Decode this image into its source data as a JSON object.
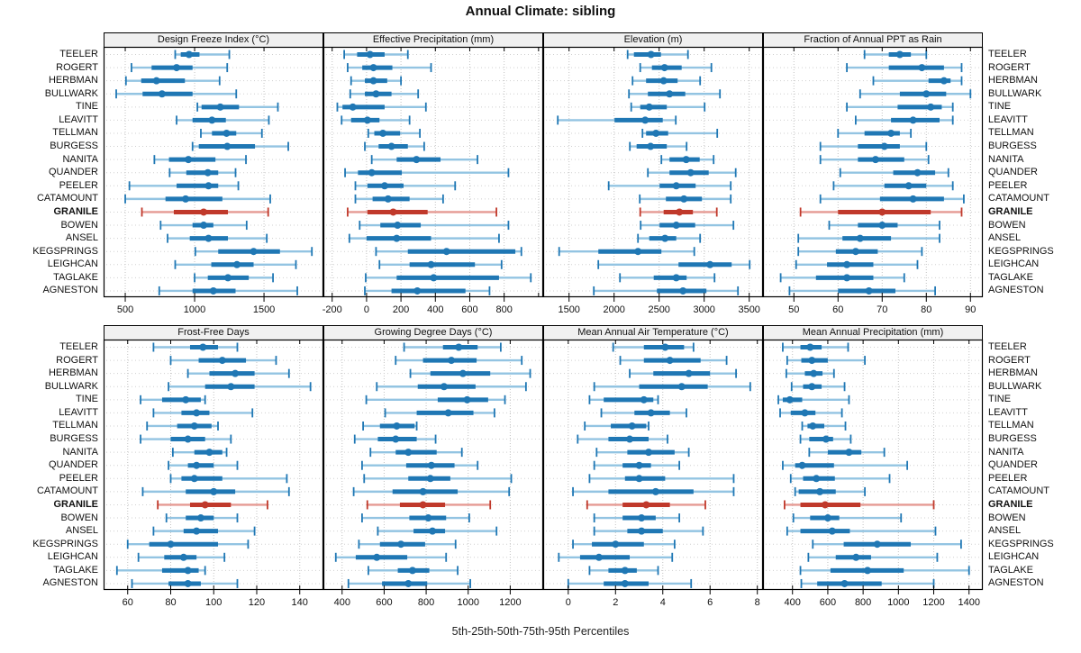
{
  "header": {
    "title": "Annual Climate: sibling"
  },
  "caption": {
    "text": "5th-25th-50th-75th-95th Percentiles"
  },
  "stations": [
    "TEELER",
    "ROGERT",
    "HERBMAN",
    "BULLWARK",
    "TINE",
    "LEAVITT",
    "TELLMAN",
    "BURGESS",
    "NANITA",
    "QUANDER",
    "PEELER",
    "CATAMOUNT",
    "GRANILE",
    "BOWEN",
    "ANSEL",
    "KEGSPRINGS",
    "LEIGHCAN",
    "TAGLAKE",
    "AGNESTON"
  ],
  "highlight_station": "GRANILE",
  "percentile_labels": [
    "5th",
    "25th",
    "50th",
    "75th",
    "95th"
  ],
  "style": {
    "blue": "#1f77b4",
    "blue_light": "#93c4e2",
    "red": "#c0392b",
    "red_light": "#e59a93",
    "grid": "#c3c3c3",
    "row_guide": "#d0d0d0",
    "header_bg": "#f0f0f0",
    "border": "#000000"
  },
  "chart_data": [
    {
      "type": "scatter",
      "subtype": "horizontal 5-25-50-75-95 percentile intervals",
      "title": "Design Freeze Index (°C)",
      "row": 0,
      "ticks": [
        500,
        1000,
        1500
      ],
      "xlim": [
        344,
        1928
      ],
      "values": [
        [
          860,
          900,
          960,
          1035,
          1250
        ],
        [
          545,
          690,
          870,
          985,
          1235
        ],
        [
          505,
          615,
          725,
          930,
          1180
        ],
        [
          435,
          625,
          765,
          985,
          1300
        ],
        [
          1020,
          1050,
          1185,
          1320,
          1600
        ],
        [
          870,
          985,
          1125,
          1225,
          1535
        ],
        [
          1045,
          1125,
          1230,
          1300,
          1485
        ],
        [
          985,
          1030,
          1235,
          1435,
          1675
        ],
        [
          710,
          815,
          955,
          1150,
          1370
        ],
        [
          820,
          940,
          1095,
          1170,
          1295
        ],
        [
          530,
          870,
          1100,
          1170,
          1315
        ],
        [
          500,
          790,
          935,
          1200,
          1545
        ],
        [
          620,
          850,
          1065,
          1240,
          1530
        ],
        [
          755,
          985,
          1065,
          1135,
          1375
        ],
        [
          805,
          965,
          1100,
          1240,
          1520
        ],
        [
          1005,
          1170,
          1425,
          1615,
          1845
        ],
        [
          860,
          1120,
          1305,
          1425,
          1730
        ],
        [
          1000,
          1095,
          1240,
          1390,
          1565
        ],
        [
          745,
          985,
          1135,
          1295,
          1740
        ]
      ]
    },
    {
      "type": "scatter",
      "subtype": "horizontal 5-25-50-75-95 percentile intervals",
      "title": "Effective Precipitation (mm)",
      "row": 0,
      "ticks": [
        -200,
        0,
        200,
        400,
        600,
        800
      ],
      "extra_gridlines": [
        1000
      ],
      "xlim": [
        -251,
        1027
      ],
      "values": [
        [
          -130,
          -55,
          20,
          105,
          240
        ],
        [
          -110,
          -25,
          40,
          150,
          375
        ],
        [
          -90,
          -10,
          40,
          120,
          200
        ],
        [
          -95,
          -10,
          55,
          145,
          300
        ],
        [
          -170,
          -140,
          -80,
          105,
          345
        ],
        [
          -145,
          -90,
          5,
          75,
          250
        ],
        [
          10,
          45,
          95,
          195,
          310
        ],
        [
          -10,
          70,
          145,
          240,
          335
        ],
        [
          30,
          175,
          290,
          430,
          645
        ],
        [
          -125,
          -50,
          30,
          205,
          825
        ],
        [
          -65,
          5,
          105,
          215,
          515
        ],
        [
          -65,
          35,
          125,
          250,
          445
        ],
        [
          -110,
          5,
          155,
          355,
          755
        ],
        [
          -40,
          80,
          180,
          315,
          825
        ],
        [
          -100,
          0,
          175,
          375,
          770
        ],
        [
          55,
          240,
          465,
          865,
          900
        ],
        [
          75,
          250,
          375,
          630,
          785
        ],
        [
          -5,
          175,
          390,
          770,
          955
        ],
        [
          -10,
          145,
          295,
          575,
          715
        ]
      ]
    },
    {
      "type": "scatter",
      "subtype": "horizontal 5-25-50-75-95 percentile intervals",
      "title": "Elevation (m)",
      "row": 0,
      "ticks": [
        1500,
        2000,
        2500,
        3000,
        3500
      ],
      "xlim": [
        1213,
        3653
      ],
      "values": [
        [
          2150,
          2220,
          2410,
          2520,
          2820
        ],
        [
          2290,
          2420,
          2560,
          2750,
          3080
        ],
        [
          2205,
          2355,
          2550,
          2705,
          2955
        ],
        [
          2165,
          2375,
          2615,
          2790,
          3175
        ],
        [
          2190,
          2290,
          2390,
          2585,
          3005
        ],
        [
          1375,
          2005,
          2345,
          2540,
          2685
        ],
        [
          2315,
          2355,
          2465,
          2600,
          3145
        ],
        [
          2175,
          2250,
          2405,
          2585,
          2805
        ],
        [
          2525,
          2615,
          2800,
          2950,
          3105
        ],
        [
          2375,
          2615,
          2850,
          3050,
          3350
        ],
        [
          1940,
          2505,
          2690,
          2905,
          3295
        ],
        [
          2285,
          2575,
          2775,
          2975,
          3295
        ],
        [
          2290,
          2550,
          2725,
          2875,
          3140
        ],
        [
          2295,
          2505,
          2690,
          2900,
          3325
        ],
        [
          2265,
          2390,
          2565,
          2690,
          2955
        ],
        [
          1390,
          1825,
          2265,
          2525,
          2890
        ],
        [
          1825,
          2715,
          3065,
          3305,
          3505
        ],
        [
          2065,
          2440,
          2690,
          2805,
          3115
        ],
        [
          1775,
          2475,
          2765,
          3025,
          3375
        ]
      ]
    },
    {
      "type": "scatter",
      "subtype": "horizontal 5-25-50-75-95 percentile intervals",
      "title": "Fraction of Annual PPT as Rain",
      "row": 0,
      "ticks": [
        50,
        60,
        70,
        80,
        90
      ],
      "xlim": [
        43,
        92.8
      ],
      "values": [
        [
          66,
          71.5,
          74,
          76.5,
          80
        ],
        [
          62,
          71.5,
          79,
          84,
          88
        ],
        [
          68,
          80.5,
          84,
          85.5,
          88
        ],
        [
          65,
          74,
          80,
          84.5,
          90
        ],
        [
          62,
          73.5,
          81,
          83.5,
          86
        ],
        [
          64,
          72,
          77,
          83,
          86
        ],
        [
          60,
          66,
          72,
          74,
          76.5
        ],
        [
          56,
          64.5,
          70.5,
          74,
          80
        ],
        [
          56,
          64.5,
          68.5,
          75,
          80.5
        ],
        [
          60.5,
          72.5,
          78,
          82,
          85
        ],
        [
          59,
          70.5,
          76,
          80,
          86
        ],
        [
          56,
          69.5,
          77,
          84,
          88.5
        ],
        [
          51.5,
          60,
          70,
          81,
          88
        ],
        [
          58,
          64.5,
          70,
          73.5,
          83
        ],
        [
          51,
          61,
          65,
          72,
          83
        ],
        [
          51,
          59.5,
          64,
          69,
          79
        ],
        [
          50.5,
          57.5,
          62,
          68,
          78
        ],
        [
          47,
          55,
          62,
          68,
          75
        ],
        [
          49,
          60,
          67,
          73,
          82
        ]
      ]
    },
    {
      "type": "scatter",
      "subtype": "horizontal 5-25-50-75-95 percentile intervals",
      "title": "Frost-Free Days",
      "row": 1,
      "ticks": [
        60,
        80,
        100,
        120,
        140
      ],
      "xlim": [
        48.8,
        151
      ],
      "values": [
        [
          72,
          89,
          95,
          102,
          111
        ],
        [
          80,
          93,
          104,
          115,
          129
        ],
        [
          88,
          98,
          110,
          119,
          135
        ],
        [
          79,
          96,
          108,
          119,
          145
        ],
        [
          66,
          76,
          87,
          94,
          96
        ],
        [
          72,
          85,
          92,
          98,
          118
        ],
        [
          69,
          83,
          91,
          99,
          102
        ],
        [
          66,
          80,
          88,
          96,
          108
        ],
        [
          81,
          91,
          98,
          104,
          106
        ],
        [
          79,
          88,
          92,
          100,
          111
        ],
        [
          80,
          85,
          91,
          104,
          134
        ],
        [
          67,
          87,
          100,
          110,
          135
        ],
        [
          74,
          89,
          96,
          108,
          125
        ],
        [
          78,
          87,
          94,
          100,
          111
        ],
        [
          72,
          86,
          92,
          102,
          119
        ],
        [
          60,
          70,
          80,
          102,
          116
        ],
        [
          65,
          77,
          86,
          92,
          105
        ],
        [
          55,
          76,
          88,
          93,
          96
        ],
        [
          62,
          79,
          88,
          94,
          111
        ]
      ]
    },
    {
      "type": "scatter",
      "subtype": "horizontal 5-25-50-75-95 percentile intervals",
      "title": "Growing Degree Days (°C)",
      "row": 1,
      "ticks": [
        400,
        600,
        800,
        1000,
        1200
      ],
      "xlim": [
        311,
        1357
      ],
      "values": [
        [
          695,
          880,
          955,
          1045,
          1155
        ],
        [
          655,
          785,
          920,
          1040,
          1255
        ],
        [
          725,
          820,
          975,
          1105,
          1295
        ],
        [
          565,
          760,
          885,
          1035,
          1275
        ],
        [
          515,
          855,
          995,
          1095,
          1175
        ],
        [
          605,
          755,
          905,
          1025,
          1125
        ],
        [
          500,
          580,
          660,
          745,
          755
        ],
        [
          460,
          570,
          655,
          755,
          845
        ],
        [
          535,
          655,
          715,
          850,
          970
        ],
        [
          495,
          705,
          825,
          935,
          1045
        ],
        [
          505,
          715,
          820,
          915,
          1205
        ],
        [
          455,
          640,
          785,
          950,
          1195
        ],
        [
          520,
          675,
          785,
          890,
          1105
        ],
        [
          495,
          720,
          810,
          895,
          1005
        ],
        [
          570,
          740,
          830,
          890,
          1135
        ],
        [
          480,
          580,
          680,
          795,
          940
        ],
        [
          370,
          465,
          565,
          710,
          895
        ],
        [
          525,
          665,
          735,
          815,
          950
        ],
        [
          430,
          590,
          715,
          805,
          1010
        ]
      ]
    },
    {
      "type": "scatter",
      "subtype": "horizontal 5-25-50-75-95 percentile intervals",
      "title": "Mean Annual Air Temperature (°C)",
      "row": 1,
      "ticks": [
        0,
        2,
        4,
        6,
        8
      ],
      "xlim": [
        -1.06,
        8.24
      ],
      "values": [
        [
          1.9,
          3.2,
          4.1,
          4.9,
          5.3
        ],
        [
          2.2,
          3.2,
          4.3,
          5.6,
          6.7
        ],
        [
          2.6,
          3.6,
          5.1,
          6.0,
          7.1
        ],
        [
          1.1,
          3.0,
          4.8,
          5.9,
          7.7
        ],
        [
          0.9,
          1.5,
          3.2,
          3.6,
          3.8
        ],
        [
          1.4,
          2.8,
          3.5,
          4.3,
          5.0
        ],
        [
          0.7,
          1.8,
          2.7,
          3.3,
          3.4
        ],
        [
          0.4,
          1.7,
          2.6,
          3.4,
          4.2
        ],
        [
          1.2,
          2.5,
          3.4,
          4.5,
          5.1
        ],
        [
          1.1,
          2.3,
          3.0,
          3.5,
          4.7
        ],
        [
          0.9,
          2.4,
          3.0,
          4.1,
          7.0
        ],
        [
          0.2,
          1.7,
          3.7,
          5.3,
          7.0
        ],
        [
          0.8,
          2.3,
          3.3,
          4.3,
          5.8
        ],
        [
          1.1,
          2.3,
          3.1,
          3.7,
          4.7
        ],
        [
          1.1,
          2.5,
          3.1,
          4.0,
          5.7
        ],
        [
          0.2,
          1.0,
          2.0,
          3.2,
          4.5
        ],
        [
          -0.4,
          0.5,
          1.3,
          2.6,
          4.4
        ],
        [
          0.9,
          1.7,
          2.4,
          2.9,
          3.8
        ],
        [
          0.0,
          1.5,
          2.4,
          3.4,
          5.2
        ]
      ]
    },
    {
      "type": "scatter",
      "subtype": "horizontal 5-25-50-75-95 percentile intervals",
      "title": "Mean Annual Precipitation (mm)",
      "row": 1,
      "ticks": [
        400,
        600,
        800,
        1000,
        1200,
        1400
      ],
      "xlim": [
        233,
        1478
      ],
      "values": [
        [
          345,
          445,
          500,
          565,
          715
        ],
        [
          370,
          450,
          510,
          600,
          810
        ],
        [
          365,
          470,
          520,
          570,
          635
        ],
        [
          395,
          460,
          510,
          565,
          695
        ],
        [
          320,
          345,
          385,
          455,
          720
        ],
        [
          330,
          390,
          470,
          530,
          680
        ],
        [
          455,
          485,
          515,
          580,
          700
        ],
        [
          445,
          495,
          590,
          630,
          730
        ],
        [
          495,
          600,
          720,
          790,
          920
        ],
        [
          345,
          415,
          455,
          635,
          1050
        ],
        [
          390,
          460,
          535,
          640,
          950
        ],
        [
          415,
          435,
          555,
          645,
          810
        ],
        [
          355,
          445,
          585,
          785,
          1200
        ],
        [
          405,
          500,
          600,
          665,
          1015
        ],
        [
          370,
          445,
          625,
          725,
          1210
        ],
        [
          515,
          690,
          880,
          1070,
          1355
        ],
        [
          490,
          645,
          760,
          845,
          1220
        ],
        [
          445,
          615,
          825,
          1030,
          1400
        ],
        [
          450,
          540,
          695,
          905,
          1200
        ]
      ]
    }
  ]
}
